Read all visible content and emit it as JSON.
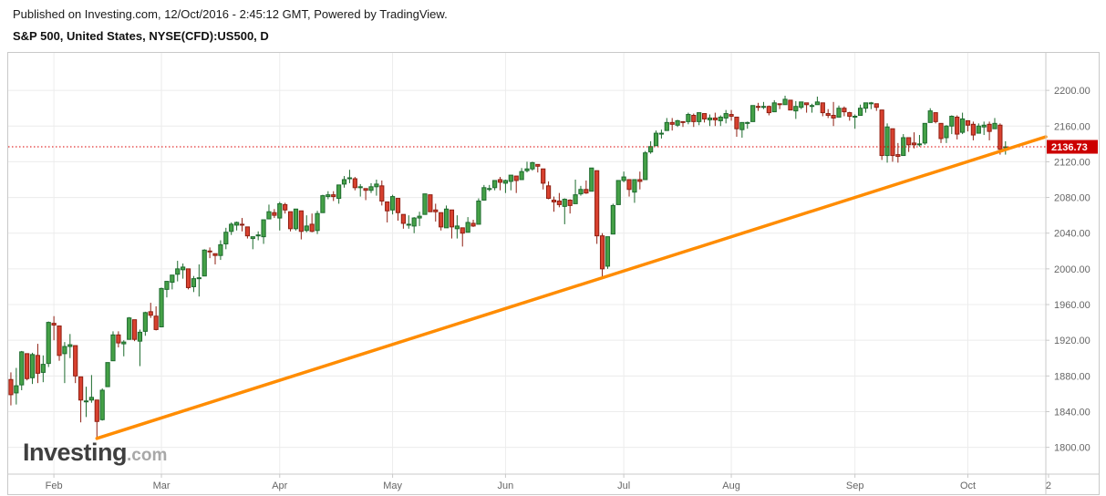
{
  "header": {
    "published_line": "Published on Investing.com, 12/Oct/2016 - 2:45:12 GMT, Powered by TradingView.",
    "symbol_line": "S&P 500, United States, NYSE(CFD):US500, D"
  },
  "watermark": {
    "main": "Investing",
    "suffix": ".com"
  },
  "chart_data": {
    "type": "candlestick",
    "title": "S&P 500, United States, NYSE(CFD):US500, D",
    "symbol": "NYSE(CFD):US500",
    "interval": "D",
    "total_slots": 193,
    "y_axis": {
      "min": 1770,
      "max": 2242,
      "grid_step": 40,
      "tick_values": [
        2200,
        2160,
        2120,
        2080,
        2040,
        2000,
        1960,
        1920,
        1880,
        1840,
        1800
      ],
      "tick_labels": [
        "2200.00",
        "2160.00",
        "2120.00",
        "2080.00",
        "2040.00",
        "2000.00",
        "1960.00",
        "1920.00",
        "1880.00",
        "1840.00",
        "1800.00"
      ]
    },
    "x_axis": {
      "ticks": [
        {
          "label": "Feb",
          "index": 8
        },
        {
          "label": "Mar",
          "index": 28
        },
        {
          "label": "Apr",
          "index": 50
        },
        {
          "label": "May",
          "index": 71
        },
        {
          "label": "Jun",
          "index": 92
        },
        {
          "label": "Jul",
          "index": 114
        },
        {
          "label": "Aug",
          "index": 134
        },
        {
          "label": "Sep",
          "index": 157
        },
        {
          "label": "Oct",
          "index": 178
        },
        {
          "label": "2",
          "index": 193
        }
      ]
    },
    "last_price": {
      "value": 2136.73,
      "label": "2136.73"
    },
    "trendline": {
      "from_index": 16,
      "from_price": 1810,
      "to_index": 193,
      "to_price": 2148
    },
    "colors": {
      "up_fill": "#45a147",
      "up_stroke": "#1d6b2e",
      "down_fill": "#d8412f",
      "down_stroke": "#8f1f12",
      "grid": "#ececec",
      "axis_line": "#c9c9c9",
      "axis_text": "#666666",
      "trendline": "#ff8c00",
      "last_price_line": "#dd0000",
      "last_price_bg": "#cc0000",
      "last_price_text": "#ffffff"
    },
    "candles": [
      [
        1876,
        1884,
        1847,
        1859
      ],
      [
        1861,
        1889,
        1848,
        1869
      ],
      [
        1870,
        1908,
        1864,
        1907
      ],
      [
        1905,
        1905,
        1875,
        1877
      ],
      [
        1878,
        1906,
        1871,
        1904
      ],
      [
        1903,
        1916,
        1872,
        1883
      ],
      [
        1884,
        1903,
        1873,
        1893
      ],
      [
        1894,
        1941,
        1890,
        1940
      ],
      [
        1939,
        1947,
        1920,
        1937
      ],
      [
        1936,
        1936,
        1897,
        1903
      ],
      [
        1905,
        1918,
        1872,
        1913
      ],
      [
        1913,
        1927,
        1900,
        1915
      ],
      [
        1914,
        1914,
        1872,
        1880
      ],
      [
        1879,
        1879,
        1828,
        1853
      ],
      [
        1851,
        1868,
        1834,
        1852
      ],
      [
        1853,
        1881,
        1850,
        1856
      ],
      [
        1853,
        1853,
        1810,
        1829
      ],
      [
        1831,
        1866,
        1830,
        1864
      ],
      [
        1868,
        1895,
        1868,
        1895
      ],
      [
        1897,
        1930,
        1897,
        1926
      ],
      [
        1926,
        1930,
        1912,
        1917
      ],
      [
        1916,
        1920,
        1902,
        1918
      ],
      [
        1921,
        1946,
        1921,
        1945
      ],
      [
        1943,
        1943,
        1919,
        1921
      ],
      [
        1919,
        1932,
        1891,
        1929
      ],
      [
        1930,
        1952,
        1925,
        1951
      ],
      [
        1952,
        1962,
        1945,
        1948
      ],
      [
        1947,
        1958,
        1931,
        1932
      ],
      [
        1935,
        1979,
        1935,
        1978
      ],
      [
        1977,
        1986,
        1968,
        1986
      ],
      [
        1985,
        1993,
        1977,
        1993
      ],
      [
        1994,
        2009,
        1986,
        2000
      ],
      [
        1999,
        2006,
        1989,
        2002
      ],
      [
        2000,
        2000,
        1977,
        1979
      ],
      [
        1980,
        1992,
        1974,
        1989
      ],
      [
        1990,
        2005,
        1969,
        1990
      ],
      [
        1992,
        2022,
        1992,
        2021
      ],
      [
        2020,
        2024,
        2012,
        2019
      ],
      [
        2017,
        2017,
        2005,
        2015
      ],
      [
        2015,
        2032,
        2010,
        2027
      ],
      [
        2028,
        2046,
        2022,
        2041
      ],
      [
        2042,
        2052,
        2038,
        2050
      ],
      [
        2049,
        2053,
        2043,
        2052
      ],
      [
        2050,
        2057,
        2042,
        2049
      ],
      [
        2047,
        2047,
        2034,
        2037
      ],
      [
        2034,
        2036,
        2022,
        2036
      ],
      [
        2037,
        2042,
        2032,
        2038
      ],
      [
        2036,
        2055,
        2028,
        2055
      ],
      [
        2056,
        2072,
        2056,
        2064
      ],
      [
        2063,
        2067,
        2057,
        2060
      ],
      [
        2057,
        2075,
        2043,
        2073
      ],
      [
        2072,
        2074,
        2062,
        2066
      ],
      [
        2064,
        2064,
        2042,
        2045
      ],
      [
        2045,
        2067,
        2043,
        2067
      ],
      [
        2065,
        2065,
        2033,
        2042
      ],
      [
        2043,
        2060,
        2041,
        2048
      ],
      [
        2050,
        2062,
        2041,
        2042
      ],
      [
        2043,
        2065,
        2039,
        2062
      ],
      [
        2063,
        2083,
        2063,
        2082
      ],
      [
        2081,
        2087,
        2078,
        2083
      ],
      [
        2083,
        2087,
        2076,
        2081
      ],
      [
        2079,
        2094,
        2073,
        2094
      ],
      [
        2095,
        2104,
        2091,
        2100
      ],
      [
        2101,
        2111,
        2096,
        2102
      ],
      [
        2101,
        2103,
        2088,
        2091
      ],
      [
        2091,
        2095,
        2081,
        2092
      ],
      [
        2090,
        2090,
        2077,
        2088
      ],
      [
        2088,
        2096,
        2085,
        2092
      ],
      [
        2092,
        2100,
        2082,
        2095
      ],
      [
        2093,
        2099,
        2071,
        2076
      ],
      [
        2075,
        2075,
        2052,
        2065
      ],
      [
        2066,
        2083,
        2061,
        2081
      ],
      [
        2079,
        2079,
        2054,
        2063
      ],
      [
        2061,
        2061,
        2045,
        2051
      ],
      [
        2050,
        2060,
        2045,
        2050
      ],
      [
        2048,
        2058,
        2040,
        2057
      ],
      [
        2057,
        2064,
        2048,
        2059
      ],
      [
        2061,
        2084,
        2061,
        2084
      ],
      [
        2083,
        2083,
        2064,
        2064
      ],
      [
        2066,
        2073,
        2053,
        2064
      ],
      [
        2063,
        2063,
        2043,
        2047
      ],
      [
        2046,
        2071,
        2046,
        2067
      ],
      [
        2066,
        2066,
        2034,
        2047
      ],
      [
        2045,
        2060,
        2034,
        2048
      ],
      [
        2046,
        2046,
        2025,
        2040
      ],
      [
        2041,
        2058,
        2041,
        2052
      ],
      [
        2051,
        2055,
        2047,
        2048
      ],
      [
        2050,
        2079,
        2050,
        2076
      ],
      [
        2077,
        2094,
        2077,
        2091
      ],
      [
        2090,
        2094,
        2087,
        2090
      ],
      [
        2091,
        2099,
        2088,
        2099
      ],
      [
        2100,
        2103,
        2088,
        2097
      ],
      [
        2096,
        2100,
        2085,
        2099
      ],
      [
        2098,
        2105,
        2088,
        2105
      ],
      [
        2104,
        2104,
        2085,
        2099
      ],
      [
        2100,
        2113,
        2100,
        2109
      ],
      [
        2110,
        2120,
        2108,
        2112
      ],
      [
        2112,
        2120,
        2110,
        2119
      ],
      [
        2117,
        2117,
        2108,
        2115
      ],
      [
        2112,
        2112,
        2089,
        2096
      ],
      [
        2093,
        2098,
        2078,
        2079
      ],
      [
        2077,
        2081,
        2064,
        2075
      ],
      [
        2076,
        2085,
        2069,
        2072
      ],
      [
        2070,
        2079,
        2050,
        2078
      ],
      [
        2077,
        2078,
        2062,
        2071
      ],
      [
        2073,
        2100,
        2073,
        2083
      ],
      [
        2084,
        2093,
        2082,
        2089
      ],
      [
        2089,
        2099,
        2084,
        2085
      ],
      [
        2087,
        2113,
        2087,
        2113
      ],
      [
        2110,
        2110,
        2028,
        2037
      ],
      [
        2037,
        2040,
        1991,
        2000
      ],
      [
        2003,
        2036,
        2000,
        2036
      ],
      [
        2039,
        2073,
        2039,
        2071
      ],
      [
        2072,
        2099,
        2072,
        2099
      ],
      [
        2099,
        2109,
        2097,
        2103
      ],
      [
        2100,
        2100,
        2081,
        2089
      ],
      [
        2086,
        2100,
        2074,
        2100
      ],
      [
        2100,
        2109,
        2089,
        2098
      ],
      [
        2100,
        2132,
        2100,
        2130
      ],
      [
        2131,
        2143,
        2129,
        2137
      ],
      [
        2138,
        2155,
        2138,
        2152
      ],
      [
        2152,
        2156,
        2146,
        2152
      ],
      [
        2155,
        2169,
        2155,
        2164
      ],
      [
        2164,
        2169,
        2155,
        2162
      ],
      [
        2161,
        2167,
        2159,
        2166
      ],
      [
        2165,
        2165,
        2159,
        2164
      ],
      [
        2165,
        2175,
        2162,
        2173
      ],
      [
        2172,
        2174,
        2159,
        2165
      ],
      [
        2165,
        2175,
        2161,
        2175
      ],
      [
        2174,
        2174,
        2164,
        2168
      ],
      [
        2167,
        2173,
        2160,
        2169
      ],
      [
        2169,
        2175,
        2160,
        2167
      ],
      [
        2166,
        2172,
        2160,
        2170
      ],
      [
        2169,
        2178,
        2163,
        2174
      ],
      [
        2173,
        2178,
        2166,
        2171
      ],
      [
        2170,
        2170,
        2148,
        2157
      ],
      [
        2156,
        2164,
        2147,
        2164
      ],
      [
        2163,
        2165,
        2157,
        2164
      ],
      [
        2165,
        2183,
        2165,
        2183
      ],
      [
        2182,
        2186,
        2177,
        2181
      ],
      [
        2181,
        2187,
        2179,
        2182
      ],
      [
        2182,
        2183,
        2172,
        2175
      ],
      [
        2176,
        2189,
        2176,
        2186
      ],
      [
        2185,
        2185,
        2179,
        2184
      ],
      [
        2184,
        2194,
        2184,
        2190
      ],
      [
        2189,
        2189,
        2178,
        2178
      ],
      [
        2177,
        2188,
        2168,
        2182
      ],
      [
        2181,
        2187,
        2179,
        2187
      ],
      [
        2186,
        2186,
        2175,
        2184
      ],
      [
        2183,
        2185,
        2175,
        2183
      ],
      [
        2184,
        2193,
        2184,
        2187
      ],
      [
        2186,
        2186,
        2171,
        2175
      ],
      [
        2174,
        2179,
        2169,
        2172
      ],
      [
        2172,
        2187,
        2160,
        2169
      ],
      [
        2170,
        2183,
        2170,
        2180
      ],
      [
        2180,
        2182,
        2171,
        2176
      ],
      [
        2175,
        2176,
        2166,
        2171
      ],
      [
        2170,
        2173,
        2157,
        2171
      ],
      [
        2172,
        2184,
        2172,
        2180
      ],
      [
        2180,
        2186,
        2175,
        2186
      ],
      [
        2185,
        2187,
        2179,
        2186
      ],
      [
        2185,
        2185,
        2177,
        2181
      ],
      [
        2178,
        2178,
        2122,
        2127
      ],
      [
        2127,
        2163,
        2119,
        2159
      ],
      [
        2157,
        2157,
        2120,
        2127
      ],
      [
        2128,
        2141,
        2119,
        2126
      ],
      [
        2127,
        2151,
        2127,
        2147
      ],
      [
        2147,
        2147,
        2131,
        2139
      ],
      [
        2141,
        2153,
        2135,
        2139
      ],
      [
        2140,
        2150,
        2137,
        2140
      ],
      [
        2141,
        2163,
        2139,
        2163
      ],
      [
        2164,
        2180,
        2164,
        2177
      ],
      [
        2175,
        2175,
        2163,
        2165
      ],
      [
        2163,
        2163,
        2141,
        2146
      ],
      [
        2147,
        2161,
        2141,
        2160
      ],
      [
        2160,
        2172,
        2151,
        2171
      ],
      [
        2170,
        2172,
        2145,
        2151
      ],
      [
        2153,
        2175,
        2151,
        2168
      ],
      [
        2166,
        2166,
        2154,
        2161
      ],
      [
        2162,
        2165,
        2144,
        2150
      ],
      [
        2152,
        2163,
        2152,
        2160
      ],
      [
        2159,
        2165,
        2150,
        2161
      ],
      [
        2162,
        2165,
        2144,
        2154
      ],
      [
        2157,
        2169,
        2157,
        2163
      ],
      [
        2161,
        2163,
        2128,
        2134
      ],
      [
        2136,
        2143,
        2128,
        2136.73
      ]
    ]
  }
}
